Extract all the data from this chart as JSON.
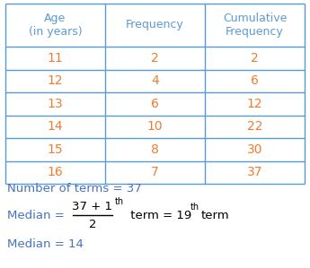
{
  "col_headers": [
    "Age\n(in years)",
    "Frequency",
    "Cumulative\nFrequency"
  ],
  "rows": [
    [
      "11",
      "2",
      "2"
    ],
    [
      "12",
      "4",
      "6"
    ],
    [
      "13",
      "6",
      "12"
    ],
    [
      "14",
      "10",
      "22"
    ],
    [
      "15",
      "8",
      "30"
    ],
    [
      "16",
      "7",
      "37"
    ]
  ],
  "header_color": "#5b9bd5",
  "data_color": "#ed7d31",
  "table_edge_color": "#5b9bd5",
  "bg_color": "#ffffff",
  "note_line1": "Number of terms = 37",
  "note_line3": "Median = 14",
  "text_color_blue": "#4472c4",
  "text_color_black": "#000000",
  "frac_num": "37 + 1",
  "frac_den": "2",
  "superscript_th": "th",
  "term_eq": " term = 19",
  "term_end": "term"
}
